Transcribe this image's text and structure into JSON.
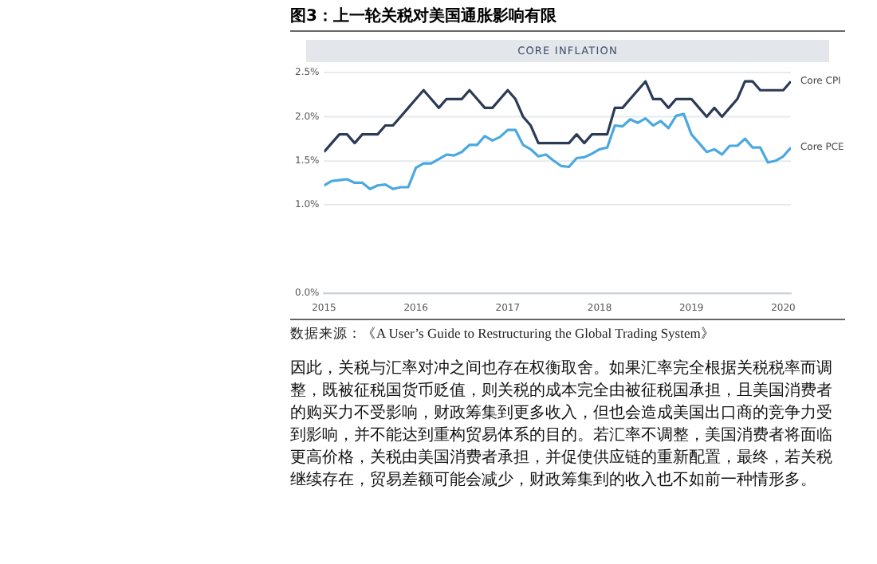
{
  "chart_data": {
    "type": "line",
    "title": "图3：上一轮关税对美国通胀影响有限",
    "subtitle": "CORE INFLATION",
    "x": [
      "2015-01",
      "2015-02",
      "2015-03",
      "2015-04",
      "2015-05",
      "2015-06",
      "2015-07",
      "2015-08",
      "2015-09",
      "2015-10",
      "2015-11",
      "2015-12",
      "2016-01",
      "2016-02",
      "2016-03",
      "2016-04",
      "2016-05",
      "2016-06",
      "2016-07",
      "2016-08",
      "2016-09",
      "2016-10",
      "2016-11",
      "2016-12",
      "2017-01",
      "2017-02",
      "2017-03",
      "2017-04",
      "2017-05",
      "2017-06",
      "2017-07",
      "2017-08",
      "2017-09",
      "2017-10",
      "2017-11",
      "2017-12",
      "2018-01",
      "2018-02",
      "2018-03",
      "2018-04",
      "2018-05",
      "2018-06",
      "2018-07",
      "2018-08",
      "2018-09",
      "2018-10",
      "2018-11",
      "2018-12",
      "2019-01",
      "2019-02",
      "2019-03",
      "2019-04",
      "2019-05",
      "2019-06",
      "2019-07",
      "2019-08",
      "2019-09",
      "2019-10",
      "2019-11",
      "2019-12",
      "2020-01",
      "2020-02"
    ],
    "series": [
      {
        "name": "Core CPI",
        "color": "#2b3a55",
        "values": [
          1.6,
          1.7,
          1.8,
          1.8,
          1.7,
          1.8,
          1.8,
          1.8,
          1.9,
          1.9,
          2.0,
          2.1,
          2.2,
          2.3,
          2.2,
          2.1,
          2.2,
          2.2,
          2.2,
          2.3,
          2.2,
          2.1,
          2.1,
          2.2,
          2.3,
          2.2,
          2.0,
          1.9,
          1.7,
          1.7,
          1.7,
          1.7,
          1.7,
          1.8,
          1.7,
          1.8,
          1.8,
          1.8,
          2.1,
          2.1,
          2.2,
          2.3,
          2.4,
          2.2,
          2.2,
          2.1,
          2.2,
          2.2,
          2.2,
          2.1,
          2.0,
          2.1,
          2.0,
          2.1,
          2.2,
          2.4,
          2.4,
          2.3,
          2.3,
          2.3,
          2.3,
          2.4
        ]
      },
      {
        "name": "Core PCE",
        "color": "#4aa8e0",
        "values": [
          1.22,
          1.27,
          1.28,
          1.29,
          1.25,
          1.25,
          1.18,
          1.22,
          1.23,
          1.18,
          1.2,
          1.2,
          1.42,
          1.47,
          1.47,
          1.52,
          1.57,
          1.56,
          1.6,
          1.68,
          1.68,
          1.78,
          1.73,
          1.77,
          1.85,
          1.85,
          1.68,
          1.63,
          1.55,
          1.57,
          1.5,
          1.44,
          1.43,
          1.53,
          1.54,
          1.58,
          1.63,
          1.65,
          1.9,
          1.89,
          1.97,
          1.93,
          1.98,
          1.9,
          1.95,
          1.87,
          2.01,
          2.03,
          1.8,
          1.7,
          1.6,
          1.63,
          1.57,
          1.67,
          1.67,
          1.75,
          1.65,
          1.65,
          1.48,
          1.5,
          1.55,
          1.65
        ]
      }
    ],
    "xlim": [
      "2015-01",
      "2020-02"
    ],
    "xticks": [
      "2015",
      "2016",
      "2017",
      "2018",
      "2019",
      "2020"
    ],
    "ylim": [
      0,
      2.5
    ],
    "yticks": [
      {
        "value": 0,
        "label": "0.0%"
      },
      {
        "value": 1,
        "label": "1.0%"
      },
      {
        "value": 1.5,
        "label": "1.5%"
      },
      {
        "value": 2,
        "label": "2.0%"
      },
      {
        "value": 2.5,
        "label": "2.5%"
      }
    ],
    "grid": "y",
    "legend": false,
    "marker": "none",
    "line_style": "solid",
    "annotations": [
      "数据来源：《A User’s Guide to Restructuring the Global Trading System》",
      "因此，关税与汇率对冲之间也存在权衡取舍。如果汇率完全根据关税税率而调整，既被征税国货币贬值，则关税的成本完全由被征税国承担，且美国消费者的购买力不受影响，财政筹集到更多收入，但也会造成美国出口商的竞争力受到影响，并不能达到重构贸易体系的目的。若汇率不调整，美国消费者将面临更高价格，关税由美国消费者承担，并促使供应链的重新配置，最终，若关税继续存在，贸易差额可能会减少，财政筹集到的收入也不如前一种情形多。"
    ]
  }
}
